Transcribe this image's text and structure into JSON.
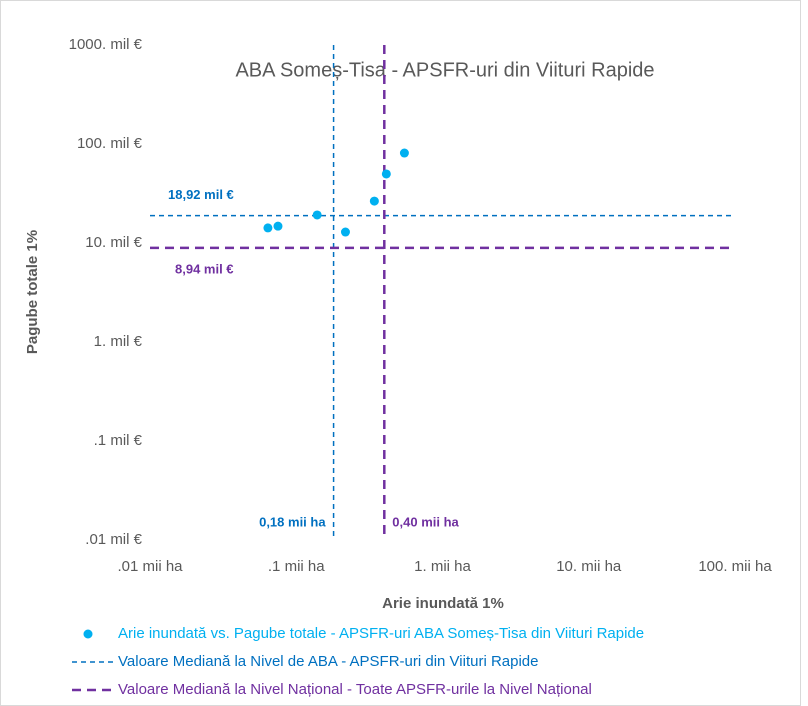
{
  "chart_data": {
    "type": "scatter",
    "title": "ABA Someș-Tisa - APSFR-uri din Viituri Rapide",
    "x_label": "Arie inundată 1%",
    "y_label": "Pagube totale 1%",
    "log_x": true,
    "log_y": true,
    "xlim": [
      0.01,
      100
    ],
    "ylim": [
      0.01,
      1000
    ],
    "xticks": [
      {
        "value": 0.01,
        "label": ".01 mii ha"
      },
      {
        "value": 0.1,
        "label": ".1 mii ha"
      },
      {
        "value": 1,
        "label": "1. mii ha"
      },
      {
        "value": 10,
        "label": "10. mii ha"
      },
      {
        "value": 100,
        "label": "100. mii ha"
      }
    ],
    "yticks": [
      {
        "value": 0.01,
        "label": ".01 mil €"
      },
      {
        "value": 0.1,
        "label": ".1 mil €"
      },
      {
        "value": 1,
        "label": "1. mil €"
      },
      {
        "value": 10,
        "label": "10. mil €"
      },
      {
        "value": 100,
        "label": "100. mil €"
      },
      {
        "value": 1000,
        "label": "1000. mil €"
      }
    ],
    "series": [
      {
        "name": "Arie inundată vs. Pagube totale - APSFR-uri ABA Someș-Tisa din Viituri Rapide",
        "color": "#00b0f0",
        "x": [
          0.064,
          0.075,
          0.139,
          0.217,
          0.342,
          0.413,
          0.549
        ],
        "values": [
          14.2,
          14.8,
          19.2,
          12.9,
          26.5,
          49.8,
          81
        ]
      }
    ],
    "median_lines": [
      {
        "name": "Valoare Mediană la Nivel de ABA - APSFR-uri din Viituri Rapide",
        "color": "#0070c0",
        "x": 0.18,
        "y": 18.92,
        "x_label": "0,18 mii ha",
        "y_label": "18,92 mil €"
      },
      {
        "name": "Valoare Mediană la Nivel Național - Toate APSFR-urile la Nivel Național",
        "color": "#7030a0",
        "x": 0.4,
        "y": 8.94,
        "x_label": "0,40 mii ha",
        "y_label": "8,94 mil €"
      }
    ]
  }
}
